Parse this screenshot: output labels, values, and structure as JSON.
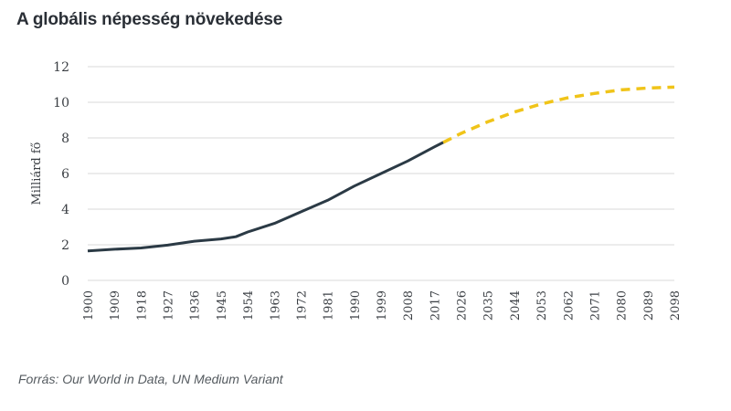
{
  "title": "A globális népesség növekedése",
  "source": "Forrás: Our World in Data, UN Medium Variant",
  "chart_data": {
    "type": "line",
    "title": "A globális népesség növekedése",
    "xlabel": "",
    "ylabel": "Milliárd fő",
    "ylim": [
      0,
      12
    ],
    "yticks": [
      0,
      2,
      4,
      6,
      8,
      10,
      12
    ],
    "xlim": [
      1900,
      2100
    ],
    "xticks": [
      "1900",
      "1909",
      "1918",
      "1927",
      "1936",
      "1945",
      "1954",
      "1963",
      "1972",
      "1981",
      "1990",
      "1999",
      "2008",
      "2017",
      "2026",
      "2035",
      "2044",
      "2053",
      "2062",
      "2071",
      "2080",
      "2089",
      "2098"
    ],
    "grid": "horizontal",
    "colors": {
      "historical": "#2b3a45",
      "projection": "#f0c419",
      "grid": "#d9d9d9"
    },
    "series": [
      {
        "style": "solid",
        "x": [
          1900,
          1909,
          1918,
          1927,
          1936,
          1945,
          1950,
          1954,
          1963,
          1972,
          1981,
          1990,
          1999,
          2008,
          2017,
          2020
        ],
        "y": [
          1.65,
          1.75,
          1.82,
          1.98,
          2.2,
          2.33,
          2.45,
          2.72,
          3.2,
          3.85,
          4.5,
          5.3,
          6.0,
          6.7,
          7.5,
          7.75
        ]
      },
      {
        "style": "dashed",
        "x": [
          2020,
          2026,
          2035,
          2044,
          2053,
          2062,
          2071,
          2080,
          2089,
          2098
        ],
        "y": [
          7.75,
          8.25,
          8.9,
          9.45,
          9.9,
          10.25,
          10.5,
          10.7,
          10.8,
          10.85
        ]
      }
    ]
  }
}
